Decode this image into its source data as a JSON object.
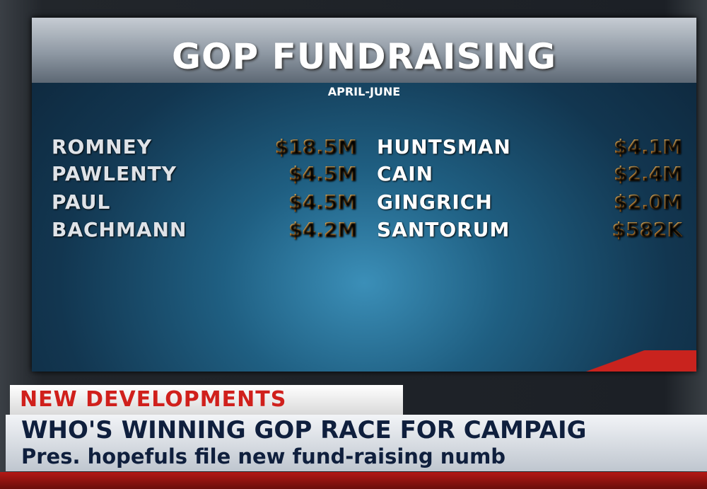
{
  "header": {
    "title": "GOP FUNDRAISING",
    "subtitle": "APRIL-JUNE"
  },
  "table": {
    "rows": [
      [
        "ROMNEY",
        "$18.5M",
        "HUNTSMAN",
        "$4.1M"
      ],
      [
        "PAWLENTY",
        "$4.5M",
        "CAIN",
        "$2.4M"
      ],
      [
        "PAUL",
        "$4.5M",
        "GINGRICH",
        "$2.0M"
      ],
      [
        "BACHMANN",
        "$4.2M",
        "SANTORUM",
        "$582K"
      ]
    ]
  },
  "lower_third": {
    "tag": "NEW DEVELOPMENTS",
    "headline": "WHO'S WINNING GOP RACE FOR CAMPAIG",
    "subline": "Pres. hopefuls file new fund-raising numb"
  }
}
